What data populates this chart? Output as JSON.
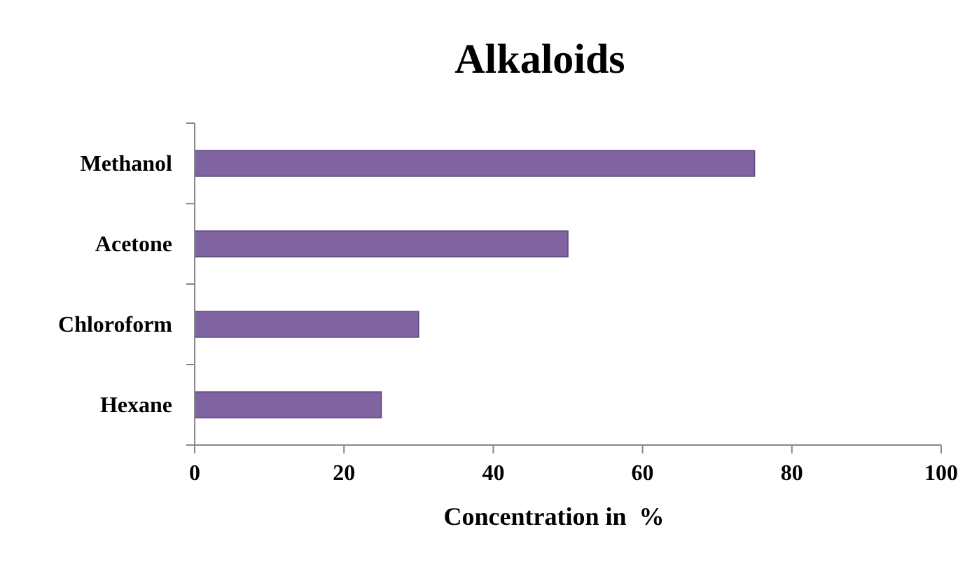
{
  "chart_data": {
    "type": "bar",
    "orientation": "horizontal",
    "title": "Alkaloids",
    "xlabel": "Concentration in  %",
    "categories": [
      "Methanol",
      "Acetone",
      "Chloroform",
      "Hexane"
    ],
    "values": [
      75,
      50,
      30,
      25
    ],
    "color": "#8064a2",
    "xlim": [
      0,
      100
    ],
    "xticks": [
      0,
      20,
      40,
      60,
      80,
      100
    ],
    "grid": false
  }
}
